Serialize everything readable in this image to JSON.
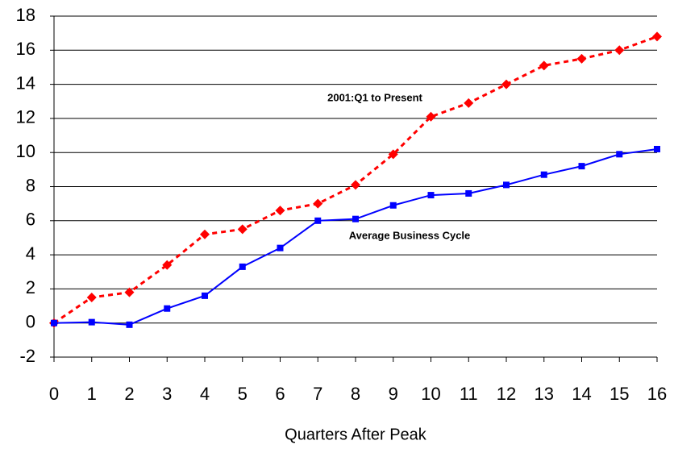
{
  "chart_data": {
    "type": "line",
    "x": [
      0,
      1,
      2,
      3,
      4,
      5,
      6,
      7,
      8,
      9,
      10,
      11,
      12,
      13,
      14,
      15,
      16
    ],
    "xlabel": "Quarters After Peak",
    "xlim": [
      0,
      16
    ],
    "xticks": [
      0,
      1,
      2,
      3,
      4,
      5,
      6,
      7,
      8,
      9,
      10,
      11,
      12,
      13,
      14,
      15,
      16
    ],
    "ylim": [
      -2,
      18
    ],
    "yticks": [
      -2,
      0,
      2,
      4,
      6,
      8,
      10,
      12,
      14,
      16,
      18
    ],
    "grid": true,
    "series": [
      {
        "name": "2001:Q1 to Present",
        "color": "#ff0000",
        "dashed": true,
        "marker": "diamond",
        "values": [
          0,
          1.5,
          1.8,
          3.4,
          5.2,
          5.5,
          6.6,
          7.0,
          8.1,
          9.9,
          12.1,
          12.9,
          14.0,
          15.1,
          15.5,
          16.0,
          16.8
        ]
      },
      {
        "name": "Average Business Cycle",
        "color": "#0000ff",
        "dashed": false,
        "marker": "square",
        "values": [
          0,
          0.05,
          -0.1,
          0.85,
          1.6,
          3.3,
          4.4,
          6.0,
          6.1,
          6.9,
          7.5,
          7.6,
          8.1,
          8.7,
          9.2,
          9.9,
          10.2
        ]
      }
    ]
  }
}
